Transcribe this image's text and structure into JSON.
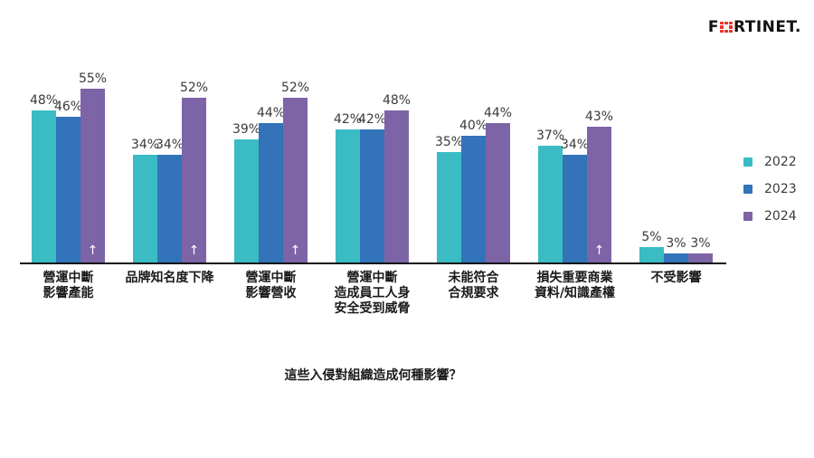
{
  "logo": {
    "text_before_icon": "F",
    "text_after_icon": "RTINET.",
    "icon_color": "#EE3124"
  },
  "legend": {
    "items": [
      {
        "label": "2022",
        "color": "#3BBCC4"
      },
      {
        "label": "2023",
        "color": "#3273B9"
      },
      {
        "label": "2024",
        "color": "#7D64A7"
      }
    ]
  },
  "chart_data": {
    "type": "bar",
    "title": "這些入侵對組織造成何種影響？",
    "value_suffix": "%",
    "categories": [
      "營運中斷影響產能",
      "品牌知名度下降",
      "營運中斷影響營收",
      "營運中斷造成員工人身安全受到威脅",
      "未能符合合規要求",
      "損失重要商業資料/知識產權",
      "不受影響"
    ],
    "category_lines": [
      [
        "營運中斷",
        "影響產能"
      ],
      [
        "品牌知名度下降"
      ],
      [
        "營運中斷",
        "影響營收"
      ],
      [
        "營運中斷",
        "造成員工人身",
        "安全受到威脅"
      ],
      [
        "未能符合",
        "合規要求"
      ],
      [
        "損失重要商業",
        "資料/知識產權"
      ],
      [
        "不受影響"
      ]
    ],
    "series": [
      {
        "name": "2022",
        "color": "#3BBCC4",
        "values": [
          48,
          34,
          39,
          42,
          35,
          37,
          5
        ]
      },
      {
        "name": "2023",
        "color": "#3273B9",
        "values": [
          46,
          34,
          44,
          42,
          40,
          34,
          3
        ]
      },
      {
        "name": "2024",
        "color": "#7D64A7",
        "values": [
          55,
          52,
          52,
          48,
          44,
          43,
          3
        ]
      }
    ],
    "increase_arrow_on_2024": [
      true,
      true,
      true,
      false,
      false,
      true,
      false
    ],
    "ylim": [
      0,
      60
    ],
    "grid": false,
    "legend_position": "right"
  }
}
